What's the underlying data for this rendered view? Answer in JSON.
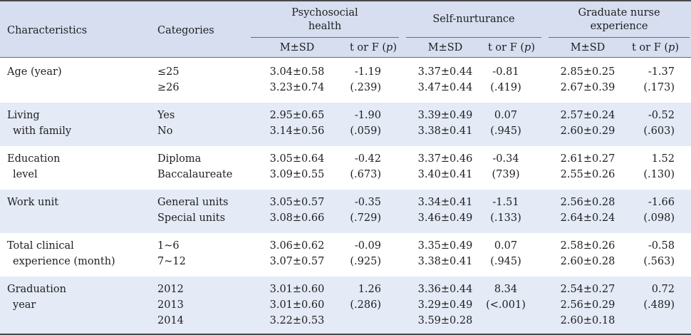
{
  "header": {
    "characteristics": "Characteristics",
    "categories": "Categories",
    "psychosocial_line1": "Psychosocial",
    "psychosocial_line2": "health",
    "self_nurturance": "Self-nurturance",
    "graduate_line1": "Graduate nurse",
    "graduate_line2": "experience",
    "msd": "M±SD",
    "t_or_f_prefix": "t or F (",
    "p": "p",
    "t_or_f_suffix": ")"
  },
  "rows": [
    {
      "char_lines": [
        "Age (year)",
        ""
      ],
      "lines": [
        {
          "cat": "≤25",
          "ps_msd": "3.04±0.58",
          "ps_t": "-1.19",
          "sn_msd": "3.37±0.44",
          "sn_t": "-0.81",
          "gn_msd": "2.85±0.25",
          "gn_t": "-1.37"
        },
        {
          "cat": "≥26",
          "ps_msd": "3.23±0.74",
          "ps_t": "(.239)",
          "sn_msd": "3.47±0.44",
          "sn_t": "(.419)",
          "gn_msd": "2.67±0.39",
          "gn_t": "(.173)"
        }
      ]
    },
    {
      "char_lines": [
        "Living",
        "with family"
      ],
      "lines": [
        {
          "cat": "Yes",
          "ps_msd": "2.95±0.65",
          "ps_t": "-1.90",
          "sn_msd": "3.39±0.49",
          "sn_t": "0.07",
          "gn_msd": "2.57±0.24",
          "gn_t": "-0.52"
        },
        {
          "cat": "No",
          "ps_msd": "3.14±0.56",
          "ps_t": "(.059)",
          "sn_msd": "3.38±0.41",
          "sn_t": "(.945)",
          "gn_msd": "2.60±0.29",
          "gn_t": "(.603)"
        }
      ]
    },
    {
      "char_lines": [
        "Education",
        "level"
      ],
      "lines": [
        {
          "cat": "Diploma",
          "ps_msd": "3.05±0.64",
          "ps_t": "-0.42",
          "sn_msd": "3.37±0.46",
          "sn_t": "-0.34",
          "gn_msd": "2.61±0.27",
          "gn_t": "1.52"
        },
        {
          "cat": "Baccalaureate",
          "ps_msd": "3.09±0.55",
          "ps_t": "(.673)",
          "sn_msd": "3.40±0.41",
          "sn_t": "(739)",
          "gn_msd": "2.55±0.26",
          "gn_t": "(.130)"
        }
      ]
    },
    {
      "char_lines": [
        "Work unit",
        ""
      ],
      "lines": [
        {
          "cat": "General units",
          "ps_msd": "3.05±0.57",
          "ps_t": "-0.35",
          "sn_msd": "3.34±0.41",
          "sn_t": "-1.51",
          "gn_msd": "2.56±0.28",
          "gn_t": "-1.66"
        },
        {
          "cat": "Special units",
          "ps_msd": "3.08±0.66",
          "ps_t": "(.729)",
          "sn_msd": "3.46±0.49",
          "sn_t": "(.133)",
          "gn_msd": "2.64±0.24",
          "gn_t": "(.098)"
        }
      ]
    },
    {
      "char_lines": [
        "Total clinical",
        "experience (month)"
      ],
      "lines": [
        {
          "cat": "1~6",
          "ps_msd": "3.06±0.62",
          "ps_t": "-0.09",
          "sn_msd": "3.35±0.49",
          "sn_t": "0.07",
          "gn_msd": "2.58±0.26",
          "gn_t": "-0.58"
        },
        {
          "cat": "7~12",
          "ps_msd": "3.07±0.57",
          "ps_t": "(.925)",
          "sn_msd": "3.38±0.41",
          "sn_t": "(.945)",
          "gn_msd": "2.60±0.28",
          "gn_t": "(.563)"
        }
      ]
    },
    {
      "char_lines": [
        "Graduation",
        "year"
      ],
      "lines": [
        {
          "cat": "2012",
          "ps_msd": "3.01±0.60",
          "ps_t": "1.26",
          "sn_msd": "3.36±0.44",
          "sn_t": "8.34",
          "gn_msd": "2.54±0.27",
          "gn_t": "0.72"
        },
        {
          "cat": "2013",
          "ps_msd": "3.01±0.60",
          "ps_t": "(.286)",
          "sn_msd": "3.29±0.49",
          "sn_t": "(<.001)",
          "gn_msd": "2.56±0.29",
          "gn_t": "(.489)"
        },
        {
          "cat": "2014",
          "ps_msd": "3.22±0.53",
          "ps_t": "",
          "sn_msd": "3.59±0.28",
          "sn_t": "",
          "gn_msd": "2.60±0.18",
          "gn_t": ""
        }
      ]
    }
  ]
}
